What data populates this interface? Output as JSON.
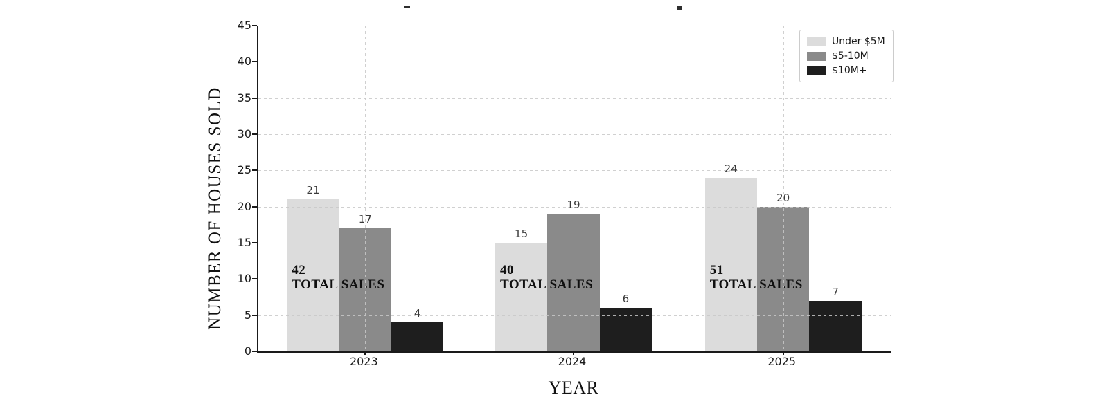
{
  "chart_data": {
    "type": "bar",
    "categories": [
      "2023",
      "2024",
      "2025"
    ],
    "series": [
      {
        "name": "Under $5M",
        "color": "#dcdcdc",
        "values": [
          21,
          15,
          24
        ]
      },
      {
        "name": "$5-10M",
        "color": "#8a8a8a",
        "values": [
          17,
          19,
          20
        ]
      },
      {
        "name": "$10M+",
        "color": "#1e1e1e",
        "values": [
          4,
          6,
          7
        ]
      }
    ],
    "totals": [
      "42",
      "40",
      "51"
    ],
    "annotation_label": "TOTAL SALES",
    "xlabel": "YEAR",
    "ylabel": "NUMBER OF HOUSES SOLD",
    "ylim": [
      0,
      45
    ],
    "ytick_step": 5,
    "yticks": [
      "0",
      "5",
      "10",
      "15",
      "20",
      "25",
      "30",
      "35",
      "40",
      "45"
    ],
    "grid": "dashed",
    "legend_position": "top-right",
    "colors": {
      "spine": "#1a1a1a",
      "gridline": "#c8c8c8",
      "value_label": "#3a3a3a",
      "background": "#ffffff"
    }
  }
}
